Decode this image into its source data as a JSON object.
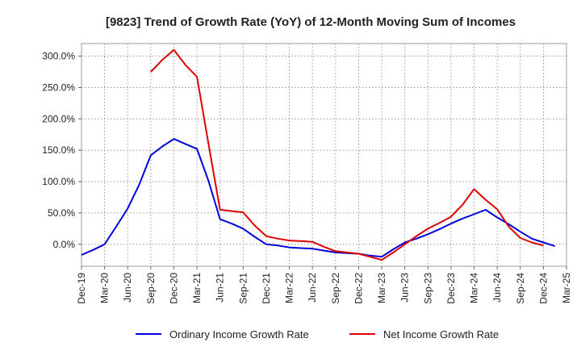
{
  "chart_data": {
    "type": "line",
    "title": "[9823]  Trend of Growth Rate (YoY) of 12-Month Moving Sum of Incomes",
    "x_labels": [
      "Dec-19",
      "Mar-20",
      "Jun-20",
      "Sep-20",
      "Dec-20",
      "Mar-21",
      "Jun-21",
      "Sep-21",
      "Dec-21",
      "Mar-22",
      "Jun-22",
      "Sep-22",
      "Dec-22",
      "Mar-23",
      "Jun-23",
      "Sep-23",
      "Dec-23",
      "Mar-24",
      "Jun-24",
      "Sep-24",
      "Dec-24",
      "Mar-25"
    ],
    "y_ticks": [
      "0.0%",
      "50.0%",
      "100.0%",
      "150.0%",
      "200.0%",
      "250.0%",
      "300.0%"
    ],
    "ylim": [
      -35,
      320
    ],
    "grid": true,
    "legend_position": "bottom",
    "series": [
      {
        "name": "Ordinary Income Growth Rate",
        "color": "#0000dd",
        "values": [
          -17,
          -9,
          0,
          28,
          57,
          95,
          142,
          156,
          168,
          160,
          152,
          101,
          40,
          33,
          25,
          12,
          0,
          -2,
          -5,
          -6,
          -7,
          -10,
          -13,
          -14,
          -15,
          -18,
          -20,
          -8,
          3,
          9,
          16,
          24,
          33,
          41,
          48,
          55,
          43,
          32,
          20,
          9,
          3,
          -3,
          null
        ]
      },
      {
        "name": "Net Income Growth Rate",
        "color": "#dd0000",
        "values": [
          null,
          null,
          null,
          null,
          null,
          null,
          275,
          294,
          310,
          286,
          267,
          160,
          55,
          53,
          51,
          30,
          13,
          9,
          6,
          5,
          4,
          -4,
          -11,
          -13,
          -15,
          -20,
          -25,
          -13,
          0,
          13,
          25,
          34,
          44,
          63,
          88,
          71,
          56,
          28,
          10,
          3,
          -2,
          null,
          null
        ]
      }
    ]
  }
}
